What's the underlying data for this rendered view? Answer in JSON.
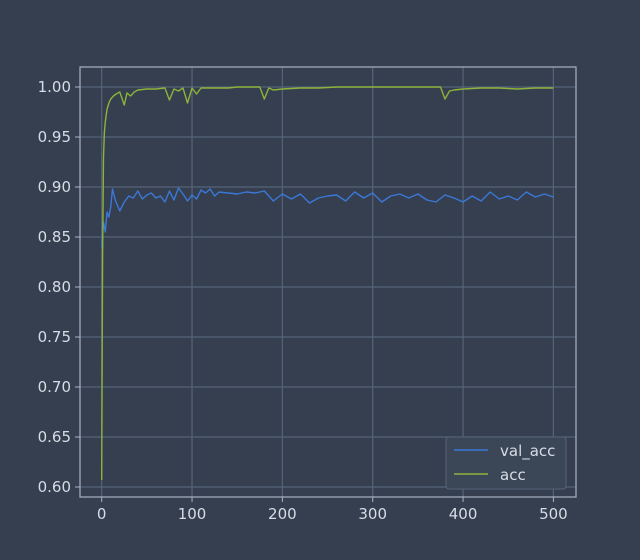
{
  "chart_data": {
    "type": "line",
    "title": "",
    "xlabel": "",
    "ylabel": "",
    "xlim": [
      -24,
      525
    ],
    "ylim": [
      0.59,
      1.02
    ],
    "x_ticks": [
      0,
      100,
      200,
      300,
      400,
      500
    ],
    "y_ticks": [
      0.6,
      0.65,
      0.7,
      0.75,
      0.8,
      0.85,
      0.9,
      0.95,
      1.0
    ],
    "grid": true,
    "legend_position": "bottom-right",
    "colors": {
      "background": "#353f4f",
      "grid": "#566479",
      "axes": "#a9b3c3",
      "text": "#d6dde6",
      "legend_bg": "#3b4657",
      "legend_border": "#566479"
    },
    "series": [
      {
        "name": "val_acc",
        "color": "#3b78d8",
        "x": [
          0,
          2,
          4,
          6,
          8,
          10,
          12,
          15,
          20,
          25,
          30,
          35,
          40,
          45,
          50,
          55,
          60,
          65,
          70,
          75,
          80,
          85,
          90,
          95,
          100,
          105,
          110,
          115,
          120,
          125,
          130,
          140,
          150,
          160,
          170,
          180,
          190,
          200,
          210,
          220,
          230,
          240,
          250,
          260,
          270,
          280,
          290,
          300,
          310,
          320,
          330,
          340,
          350,
          360,
          370,
          380,
          390,
          400,
          410,
          420,
          430,
          440,
          450,
          460,
          470,
          480,
          490,
          500
        ],
        "values": [
          0.84,
          0.865,
          0.855,
          0.875,
          0.87,
          0.88,
          0.898,
          0.887,
          0.876,
          0.885,
          0.891,
          0.889,
          0.896,
          0.888,
          0.892,
          0.894,
          0.889,
          0.891,
          0.885,
          0.896,
          0.887,
          0.899,
          0.893,
          0.886,
          0.892,
          0.888,
          0.897,
          0.894,
          0.898,
          0.891,
          0.895,
          0.894,
          0.893,
          0.895,
          0.894,
          0.896,
          0.886,
          0.893,
          0.888,
          0.893,
          0.884,
          0.889,
          0.891,
          0.892,
          0.886,
          0.895,
          0.889,
          0.894,
          0.885,
          0.891,
          0.893,
          0.889,
          0.893,
          0.887,
          0.885,
          0.892,
          0.889,
          0.885,
          0.891,
          0.886,
          0.895,
          0.888,
          0.891,
          0.887,
          0.895,
          0.89,
          0.893,
          0.89
        ]
      },
      {
        "name": "acc",
        "color": "#8db33a",
        "x": [
          0,
          1,
          2,
          3,
          4,
          5,
          6,
          8,
          10,
          13,
          16,
          20,
          25,
          28,
          32,
          36,
          40,
          50,
          60,
          70,
          75,
          80,
          85,
          90,
          95,
          100,
          105,
          110,
          120,
          130,
          140,
          150,
          160,
          170,
          175,
          180,
          185,
          190,
          200,
          220,
          240,
          260,
          280,
          300,
          320,
          340,
          360,
          375,
          380,
          385,
          390,
          400,
          420,
          440,
          460,
          480,
          500
        ],
        "values": [
          0.607,
          0.83,
          0.93,
          0.955,
          0.965,
          0.972,
          0.978,
          0.984,
          0.988,
          0.991,
          0.993,
          0.995,
          0.982,
          0.994,
          0.991,
          0.995,
          0.997,
          0.998,
          0.998,
          0.999,
          0.987,
          0.998,
          0.996,
          0.999,
          0.984,
          0.999,
          0.993,
          0.999,
          0.999,
          0.999,
          0.999,
          1.0,
          1.0,
          1.0,
          1.0,
          0.988,
          0.999,
          0.997,
          0.998,
          0.999,
          0.999,
          1.0,
          1.0,
          1.0,
          1.0,
          1.0,
          1.0,
          1.0,
          0.988,
          0.996,
          0.997,
          0.998,
          0.999,
          0.999,
          0.998,
          0.999,
          0.999
        ]
      }
    ]
  }
}
